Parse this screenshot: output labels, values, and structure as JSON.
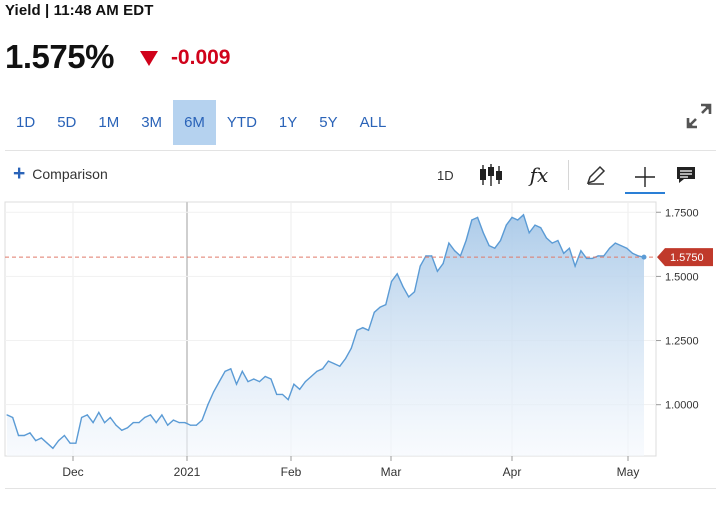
{
  "header": {
    "title": "Yield | 11:48 AM EDT"
  },
  "quote": {
    "price": "1.575%",
    "change": "-0.009",
    "direction": "down",
    "down_color": "#d0021b"
  },
  "ranges": [
    "1D",
    "5D",
    "1M",
    "3M",
    "6M",
    "YTD",
    "1Y",
    "5Y",
    "ALL"
  ],
  "active_range": "6M",
  "toolbar": {
    "comparison_label": "Comparison",
    "interval_label": "1D",
    "fx_label": "fx",
    "icons": [
      "expand-icon",
      "candlestick-icon",
      "function-icon",
      "pencil-icon",
      "crosshair-icon",
      "comment-icon"
    ]
  },
  "colors": {
    "accent": "#2a63b8",
    "line": "#5b9bd5",
    "area_top": "#a9c9e8",
    "area_bottom": "#f4f8fd",
    "last_price_badge": "#c0392b",
    "ref_line": "#e07a6a"
  },
  "chart_data": {
    "type": "area",
    "x_tick_labels": [
      "Dec",
      "2021",
      "Feb",
      "Mar",
      "Apr",
      "May"
    ],
    "y_tick_labels": [
      "1.7500",
      "1.5000",
      "1.2500",
      "1.0000"
    ],
    "ylim": [
      0.8,
      1.79
    ],
    "last_value_label": "1.5750",
    "reference_line": 1.575,
    "values": [
      0.96,
      0.95,
      0.88,
      0.88,
      0.89,
      0.86,
      0.87,
      0.85,
      0.83,
      0.86,
      0.88,
      0.85,
      0.85,
      0.95,
      0.96,
      0.93,
      0.97,
      0.93,
      0.95,
      0.92,
      0.9,
      0.91,
      0.93,
      0.93,
      0.95,
      0.96,
      0.93,
      0.96,
      0.92,
      0.94,
      0.93,
      0.93,
      0.92,
      0.92,
      0.94,
      1.0,
      1.05,
      1.09,
      1.13,
      1.14,
      1.08,
      1.13,
      1.09,
      1.1,
      1.09,
      1.11,
      1.1,
      1.04,
      1.04,
      1.02,
      1.08,
      1.06,
      1.09,
      1.11,
      1.13,
      1.14,
      1.17,
      1.16,
      1.15,
      1.18,
      1.22,
      1.29,
      1.3,
      1.29,
      1.36,
      1.38,
      1.39,
      1.48,
      1.51,
      1.46,
      1.42,
      1.44,
      1.54,
      1.58,
      1.58,
      1.52,
      1.55,
      1.63,
      1.6,
      1.58,
      1.64,
      1.72,
      1.73,
      1.67,
      1.62,
      1.61,
      1.64,
      1.7,
      1.73,
      1.72,
      1.74,
      1.67,
      1.7,
      1.69,
      1.65,
      1.63,
      1.64,
      1.59,
      1.61,
      1.54,
      1.6,
      1.57,
      1.57,
      1.58,
      1.58,
      1.61,
      1.63,
      1.62,
      1.61,
      1.59,
      1.58,
      1.575
    ]
  }
}
